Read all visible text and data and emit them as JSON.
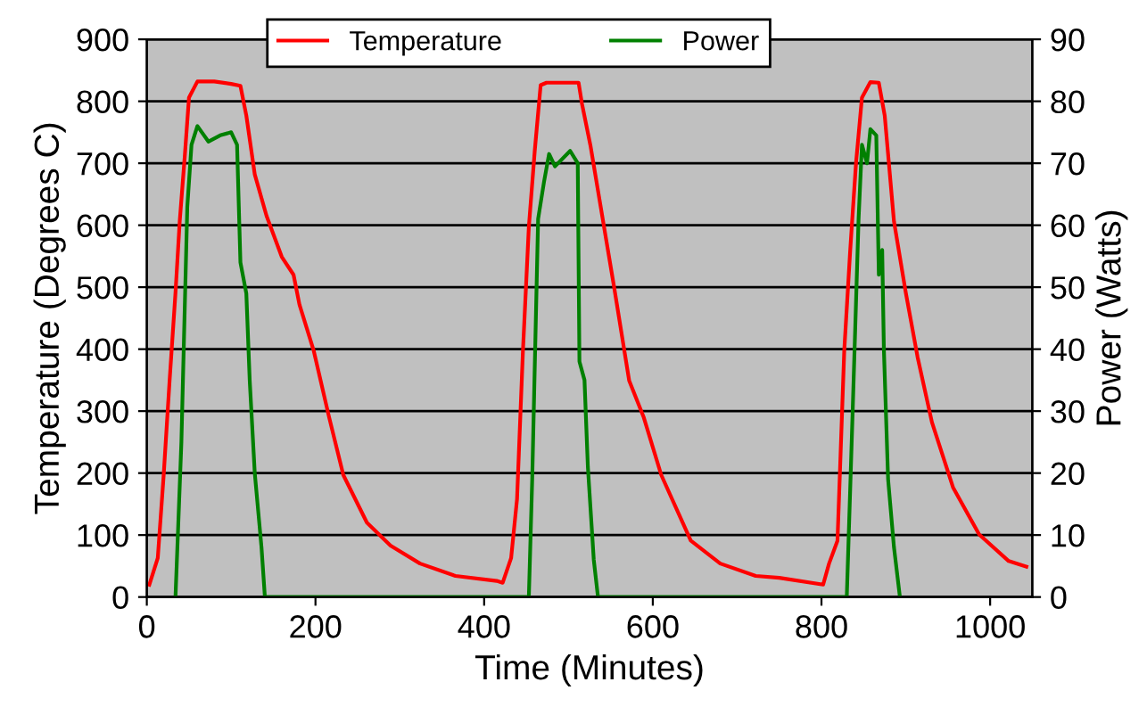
{
  "chart_data": {
    "type": "line",
    "xlabel": "Time (Minutes)",
    "ylabel": "Temperature (Degrees C)",
    "y2label": "Power (Watts)",
    "xlim": [
      0,
      1050
    ],
    "xticks": [
      0,
      200,
      400,
      600,
      800,
      1000
    ],
    "ylim": [
      0,
      900
    ],
    "yticks": [
      0,
      100,
      200,
      300,
      400,
      500,
      600,
      700,
      800,
      900
    ],
    "y2lim": [
      0,
      90
    ],
    "y2ticks": [
      0,
      10,
      20,
      30,
      40,
      50,
      60,
      70,
      80,
      90
    ],
    "grid": "y",
    "legend": "top",
    "marker": "none",
    "line_style": "solid",
    "series": [
      {
        "name": "Temperature",
        "color": "#ff0000",
        "x": [
          3,
          13,
          20,
          27,
          34,
          39,
          45,
          50,
          60,
          80,
          100,
          111,
          118,
          128,
          142,
          160,
          174,
          181,
          198,
          216,
          233,
          261,
          289,
          324,
          366,
          415,
          422,
          432,
          439,
          446,
          453,
          460,
          467,
          474,
          512,
          516,
          526,
          540,
          554,
          572,
          589,
          610,
          645,
          680,
          722,
          750,
          802,
          809,
          819,
          827,
          834,
          841,
          848,
          858,
          868,
          875,
          886,
          900,
          914,
          931,
          956,
          987,
          1022,
          1043
        ],
        "values": [
          20,
          63,
          197,
          349,
          491,
          606,
          711,
          806,
          832,
          832,
          828,
          825,
          777,
          682,
          615,
          549,
          520,
          472,
          397,
          291,
          197,
          120,
          83,
          54,
          34,
          26,
          23,
          63,
          158,
          397,
          597,
          720,
          826,
          830,
          830,
          796,
          729,
          615,
          501,
          349,
          291,
          197,
          91,
          54,
          34,
          31,
          20,
          54,
          91,
          397,
          558,
          701,
          806,
          831,
          830,
          777,
          606,
          491,
          387,
          282,
          177,
          101,
          58,
          49
        ]
      },
      {
        "name": "Power",
        "color": "#008000",
        "axis": "y2",
        "x": [
          34,
          41,
          48,
          53,
          60,
          73,
          87,
          100,
          107,
          111,
          118,
          122,
          128,
          136,
          140,
          453,
          457,
          464,
          471,
          477,
          484,
          502,
          511,
          513,
          519,
          523,
          530,
          535,
          830,
          837,
          844,
          848,
          854,
          858,
          865,
          868,
          872,
          874,
          879,
          886,
          893
        ],
        "values": [
          0,
          25,
          63,
          73,
          76,
          73.5,
          74.5,
          75,
          73,
          54,
          49,
          35,
          20,
          8,
          0,
          0,
          19,
          61,
          67,
          71.5,
          69.5,
          72,
          70,
          38,
          35,
          21,
          6,
          0,
          0,
          30,
          61,
          73,
          70,
          75.5,
          74.5,
          52,
          56,
          40,
          19,
          8,
          0
        ]
      }
    ]
  }
}
